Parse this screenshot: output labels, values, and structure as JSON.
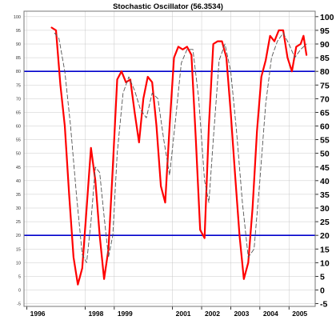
{
  "chart_data": {
    "type": "line",
    "title": "Stochastic Oscillator (56.3534)",
    "x_tick_labels": [
      "1996",
      "1998",
      "1999",
      "2001",
      "2002",
      "2003",
      "2004",
      "2005"
    ],
    "x_tick_values": [
      1996.0,
      1998.0,
      1999.0,
      2001.0,
      2002.0,
      2003.0,
      2004.0,
      2005.0
    ],
    "xlim": [
      1995.9,
      2005.9
    ],
    "y_ticks": [
      -5,
      0,
      5,
      10,
      15,
      20,
      25,
      30,
      35,
      40,
      45,
      50,
      55,
      60,
      65,
      70,
      75,
      80,
      85,
      90,
      95,
      100
    ],
    "ylim": [
      -6,
      102
    ],
    "reference_lines": [
      20,
      80
    ],
    "grid": true,
    "colors": {
      "stochastic": "#ff0000",
      "signal": "#555555",
      "reference": "#0000cc",
      "grid": "#c8c8c8"
    },
    "series": [
      {
        "key": "stochastic",
        "style": "solid",
        "points": [
          [
            1996.85,
            96
          ],
          [
            1997.0,
            95
          ],
          [
            1997.15,
            75
          ],
          [
            1997.3,
            60
          ],
          [
            1997.45,
            35
          ],
          [
            1997.6,
            12
          ],
          [
            1997.75,
            2
          ],
          [
            1997.9,
            8
          ],
          [
            1998.05,
            30
          ],
          [
            1998.2,
            52
          ],
          [
            1998.35,
            40
          ],
          [
            1998.5,
            20
          ],
          [
            1998.65,
            4
          ],
          [
            1998.8,
            15
          ],
          [
            1998.95,
            45
          ],
          [
            1999.1,
            77
          ],
          [
            1999.25,
            80
          ],
          [
            1999.4,
            76
          ],
          [
            1999.55,
            77
          ],
          [
            1999.7,
            65
          ],
          [
            1999.85,
            54
          ],
          [
            2000.0,
            70
          ],
          [
            2000.15,
            78
          ],
          [
            2000.3,
            76
          ],
          [
            2000.45,
            60
          ],
          [
            2000.6,
            38
          ],
          [
            2000.75,
            32
          ],
          [
            2000.9,
            60
          ],
          [
            2001.05,
            85
          ],
          [
            2001.2,
            89
          ],
          [
            2001.35,
            88
          ],
          [
            2001.5,
            89
          ],
          [
            2001.65,
            86
          ],
          [
            2001.8,
            55
          ],
          [
            2001.95,
            22
          ],
          [
            2002.1,
            19
          ],
          [
            2002.25,
            60
          ],
          [
            2002.4,
            90
          ],
          [
            2002.55,
            91
          ],
          [
            2002.7,
            91
          ],
          [
            2002.85,
            85
          ],
          [
            2003.0,
            65
          ],
          [
            2003.15,
            42
          ],
          [
            2003.3,
            20
          ],
          [
            2003.45,
            4
          ],
          [
            2003.6,
            10
          ],
          [
            2003.75,
            30
          ],
          [
            2003.9,
            58
          ],
          [
            2004.05,
            78
          ],
          [
            2004.2,
            84
          ],
          [
            2004.35,
            93
          ],
          [
            2004.5,
            91
          ],
          [
            2004.65,
            95
          ],
          [
            2004.8,
            95
          ],
          [
            2004.95,
            85
          ],
          [
            2005.1,
            80
          ],
          [
            2005.25,
            89
          ],
          [
            2005.4,
            90
          ],
          [
            2005.5,
            93
          ],
          [
            2005.6,
            86
          ]
        ]
      },
      {
        "key": "signal",
        "style": "dashed",
        "points": [
          [
            1996.95,
            94
          ],
          [
            1997.1,
            92
          ],
          [
            1997.3,
            80
          ],
          [
            1997.5,
            60
          ],
          [
            1997.7,
            35
          ],
          [
            1997.9,
            13
          ],
          [
            1998.05,
            10
          ],
          [
            1998.2,
            25
          ],
          [
            1998.35,
            45
          ],
          [
            1998.5,
            43
          ],
          [
            1998.65,
            27
          ],
          [
            1998.8,
            12
          ],
          [
            1998.95,
            20
          ],
          [
            1999.1,
            50
          ],
          [
            1999.3,
            72
          ],
          [
            1999.5,
            78
          ],
          [
            1999.7,
            73
          ],
          [
            1999.9,
            66
          ],
          [
            2000.1,
            63
          ],
          [
            2000.3,
            72
          ],
          [
            2000.5,
            70
          ],
          [
            2000.7,
            55
          ],
          [
            2000.9,
            42
          ],
          [
            2001.1,
            62
          ],
          [
            2001.3,
            83
          ],
          [
            2001.5,
            88
          ],
          [
            2001.7,
            88
          ],
          [
            2001.9,
            70
          ],
          [
            2002.1,
            40
          ],
          [
            2002.25,
            32
          ],
          [
            2002.4,
            55
          ],
          [
            2002.6,
            84
          ],
          [
            2002.8,
            90
          ],
          [
            2003.0,
            80
          ],
          [
            2003.2,
            58
          ],
          [
            2003.4,
            32
          ],
          [
            2003.6,
            12
          ],
          [
            2003.8,
            15
          ],
          [
            2004.0,
            40
          ],
          [
            2004.2,
            68
          ],
          [
            2004.4,
            85
          ],
          [
            2004.6,
            91
          ],
          [
            2004.8,
            94
          ],
          [
            2005.0,
            90
          ],
          [
            2005.2,
            85
          ],
          [
            2005.4,
            88
          ],
          [
            2005.6,
            90
          ]
        ]
      }
    ]
  }
}
